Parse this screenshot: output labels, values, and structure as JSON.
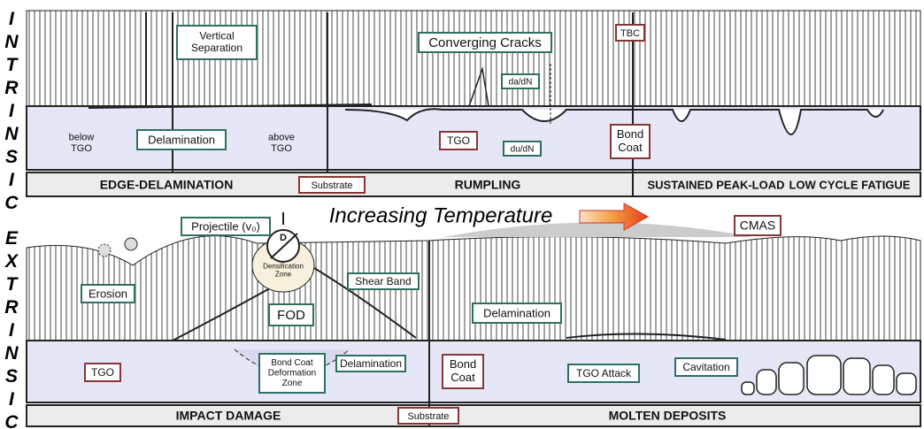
{
  "side_labels": [
    "INTRINSIC",
    "EXTRINSIC"
  ],
  "top": {
    "vertical_separation": [
      "Vertical",
      "Separation"
    ],
    "converging_cracks": "Converging Cracks",
    "tbc": "TBC",
    "da_dn": "da/dN",
    "delamination": "Delamination",
    "below_tgo": [
      "below",
      "TGO"
    ],
    "above_tgo": [
      "above",
      "TGO"
    ],
    "tgo": "TGO",
    "du_dn": "du/dN",
    "bond_coat": [
      "Bond",
      "Coat"
    ],
    "substrate": "Substrate",
    "sections": [
      "EDGE-DELAMINATION",
      "RUMPLING",
      "SUSTAINED PEAK-LOAD",
      "LOW CYCLE FATIGUE"
    ]
  },
  "middle": {
    "arrow_label": "Increasing Temperature"
  },
  "bottom": {
    "projectile": "Projectile (v₀)",
    "d": "D",
    "densification_zone": [
      "Densification",
      "Zone"
    ],
    "shear_band": "Shear Band",
    "erosion": "Erosion",
    "fod": "FOD",
    "cmas": "CMAS",
    "delamination_right": "Delamination",
    "tgo": "TGO",
    "bond_coat_deformation_zone": [
      "Bond Coat",
      "Deformation",
      "Zone"
    ],
    "delamination_left": "Delamination",
    "bond_coat": [
      "Bond",
      "Coat"
    ],
    "tgo_attack": "TGO Attack",
    "cavitation": "Cavitation",
    "sections": [
      "IMPACT DAMAGE",
      "MOLTEN DEPOSITS"
    ],
    "substrate": "Substrate"
  }
}
